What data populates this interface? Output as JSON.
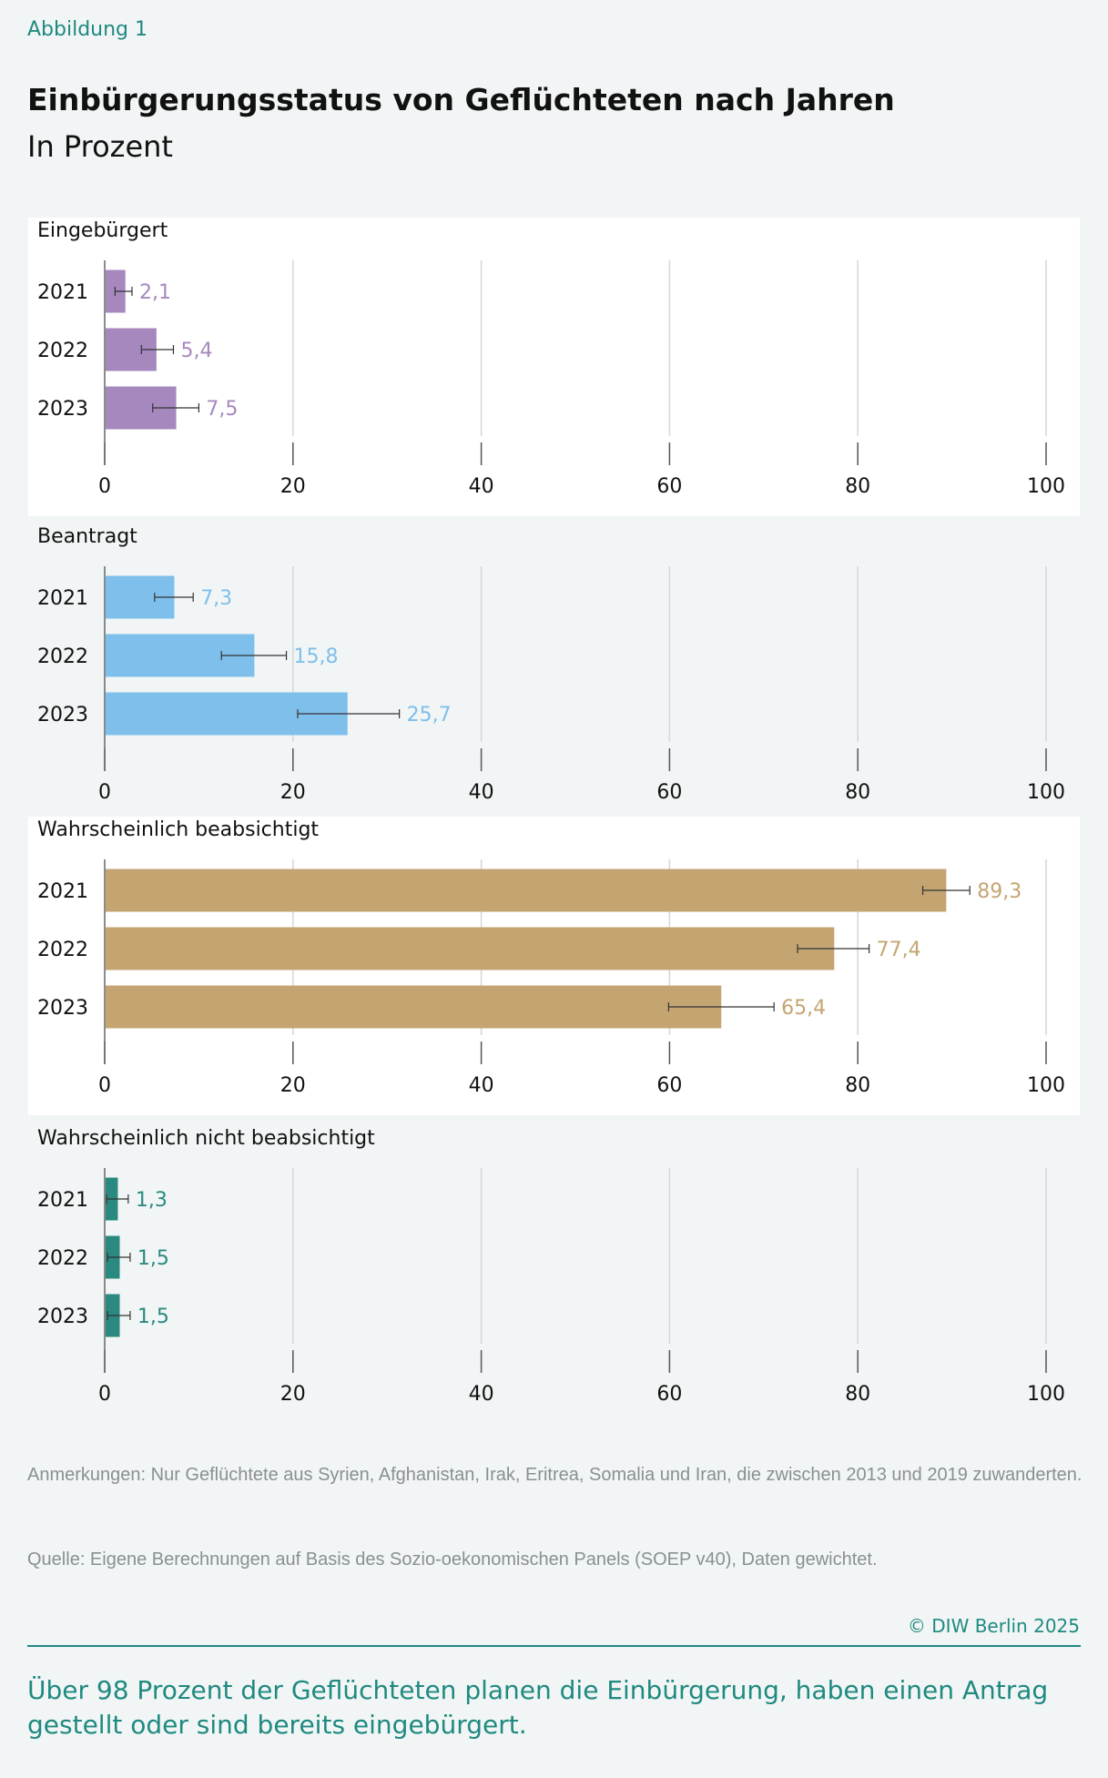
{
  "figure_label": "Abbildung 1",
  "title": "Einbürgerungsstatus von Geflüchteten nach Jahren",
  "subtitle": "In Prozent",
  "chart_data": [
    {
      "type": "bar",
      "orientation": "horizontal",
      "title": "Eingebürgert",
      "categories": [
        "2021",
        "2022",
        "2023"
      ],
      "values": [
        2.1,
        5.4,
        7.5
      ],
      "labels": [
        "2,1",
        "5,4",
        "7,5"
      ],
      "error_low": [
        1.1,
        3.9,
        5.1
      ],
      "error_high": [
        2.9,
        7.3,
        10.0
      ],
      "xlim": [
        0,
        100
      ],
      "xticks": [
        0,
        20,
        40,
        60,
        80,
        100
      ],
      "grid": true,
      "color": "#a688be"
    },
    {
      "type": "bar",
      "orientation": "horizontal",
      "title": "Beantragt",
      "categories": [
        "2021",
        "2022",
        "2023"
      ],
      "values": [
        7.3,
        15.8,
        25.7
      ],
      "labels": [
        "7,3",
        "15,8",
        "25,7"
      ],
      "error_low": [
        5.3,
        12.4,
        20.5
      ],
      "error_high": [
        9.4,
        19.3,
        31.3
      ],
      "xlim": [
        0,
        100
      ],
      "xticks": [
        0,
        20,
        40,
        60,
        80,
        100
      ],
      "grid": true,
      "color": "#7fbfeb"
    },
    {
      "type": "bar",
      "orientation": "horizontal",
      "title": "Wahrscheinlich beabsichtigt",
      "categories": [
        "2021",
        "2022",
        "2023"
      ],
      "values": [
        89.3,
        77.4,
        65.4
      ],
      "labels": [
        "89,3",
        "77,4",
        "65,4"
      ],
      "error_low": [
        86.9,
        73.6,
        59.9
      ],
      "error_high": [
        91.9,
        81.2,
        71.1
      ],
      "xlim": [
        0,
        100
      ],
      "xticks": [
        0,
        20,
        40,
        60,
        80,
        100
      ],
      "grid": true,
      "color": "#c4a572"
    },
    {
      "type": "bar",
      "orientation": "horizontal",
      "title": "Wahrscheinlich nicht beabsichtigt",
      "categories": [
        "2021",
        "2022",
        "2023"
      ],
      "values": [
        1.3,
        1.5,
        1.5
      ],
      "labels": [
        "1,3",
        "1,5",
        "1,5"
      ],
      "error_low": [
        0.2,
        0.3,
        0.3
      ],
      "error_high": [
        2.5,
        2.7,
        2.7
      ],
      "xlim": [
        0,
        100
      ],
      "xticks": [
        0,
        20,
        40,
        60,
        80,
        100
      ],
      "grid": true,
      "color": "#2a8a80"
    }
  ],
  "notes": "Anmerkungen: Nur Geflüchtete aus Syrien, Afghanistan, Irak, Eritrea, Somalia und Iran, die zwischen 2013 und 2019 zuwanderten.",
  "source": "Quelle: Eigene Berechnungen auf Basis des Sozio-oekonomischen Panels (SOEP v40), Daten gewichtet.",
  "copyright": "© DIW Berlin 2025",
  "takeaway": "Über 98 Prozent der Geflüchteten planen die Einbürgerung, haben einen Antrag gestellt oder sind bereits eingebürgert."
}
